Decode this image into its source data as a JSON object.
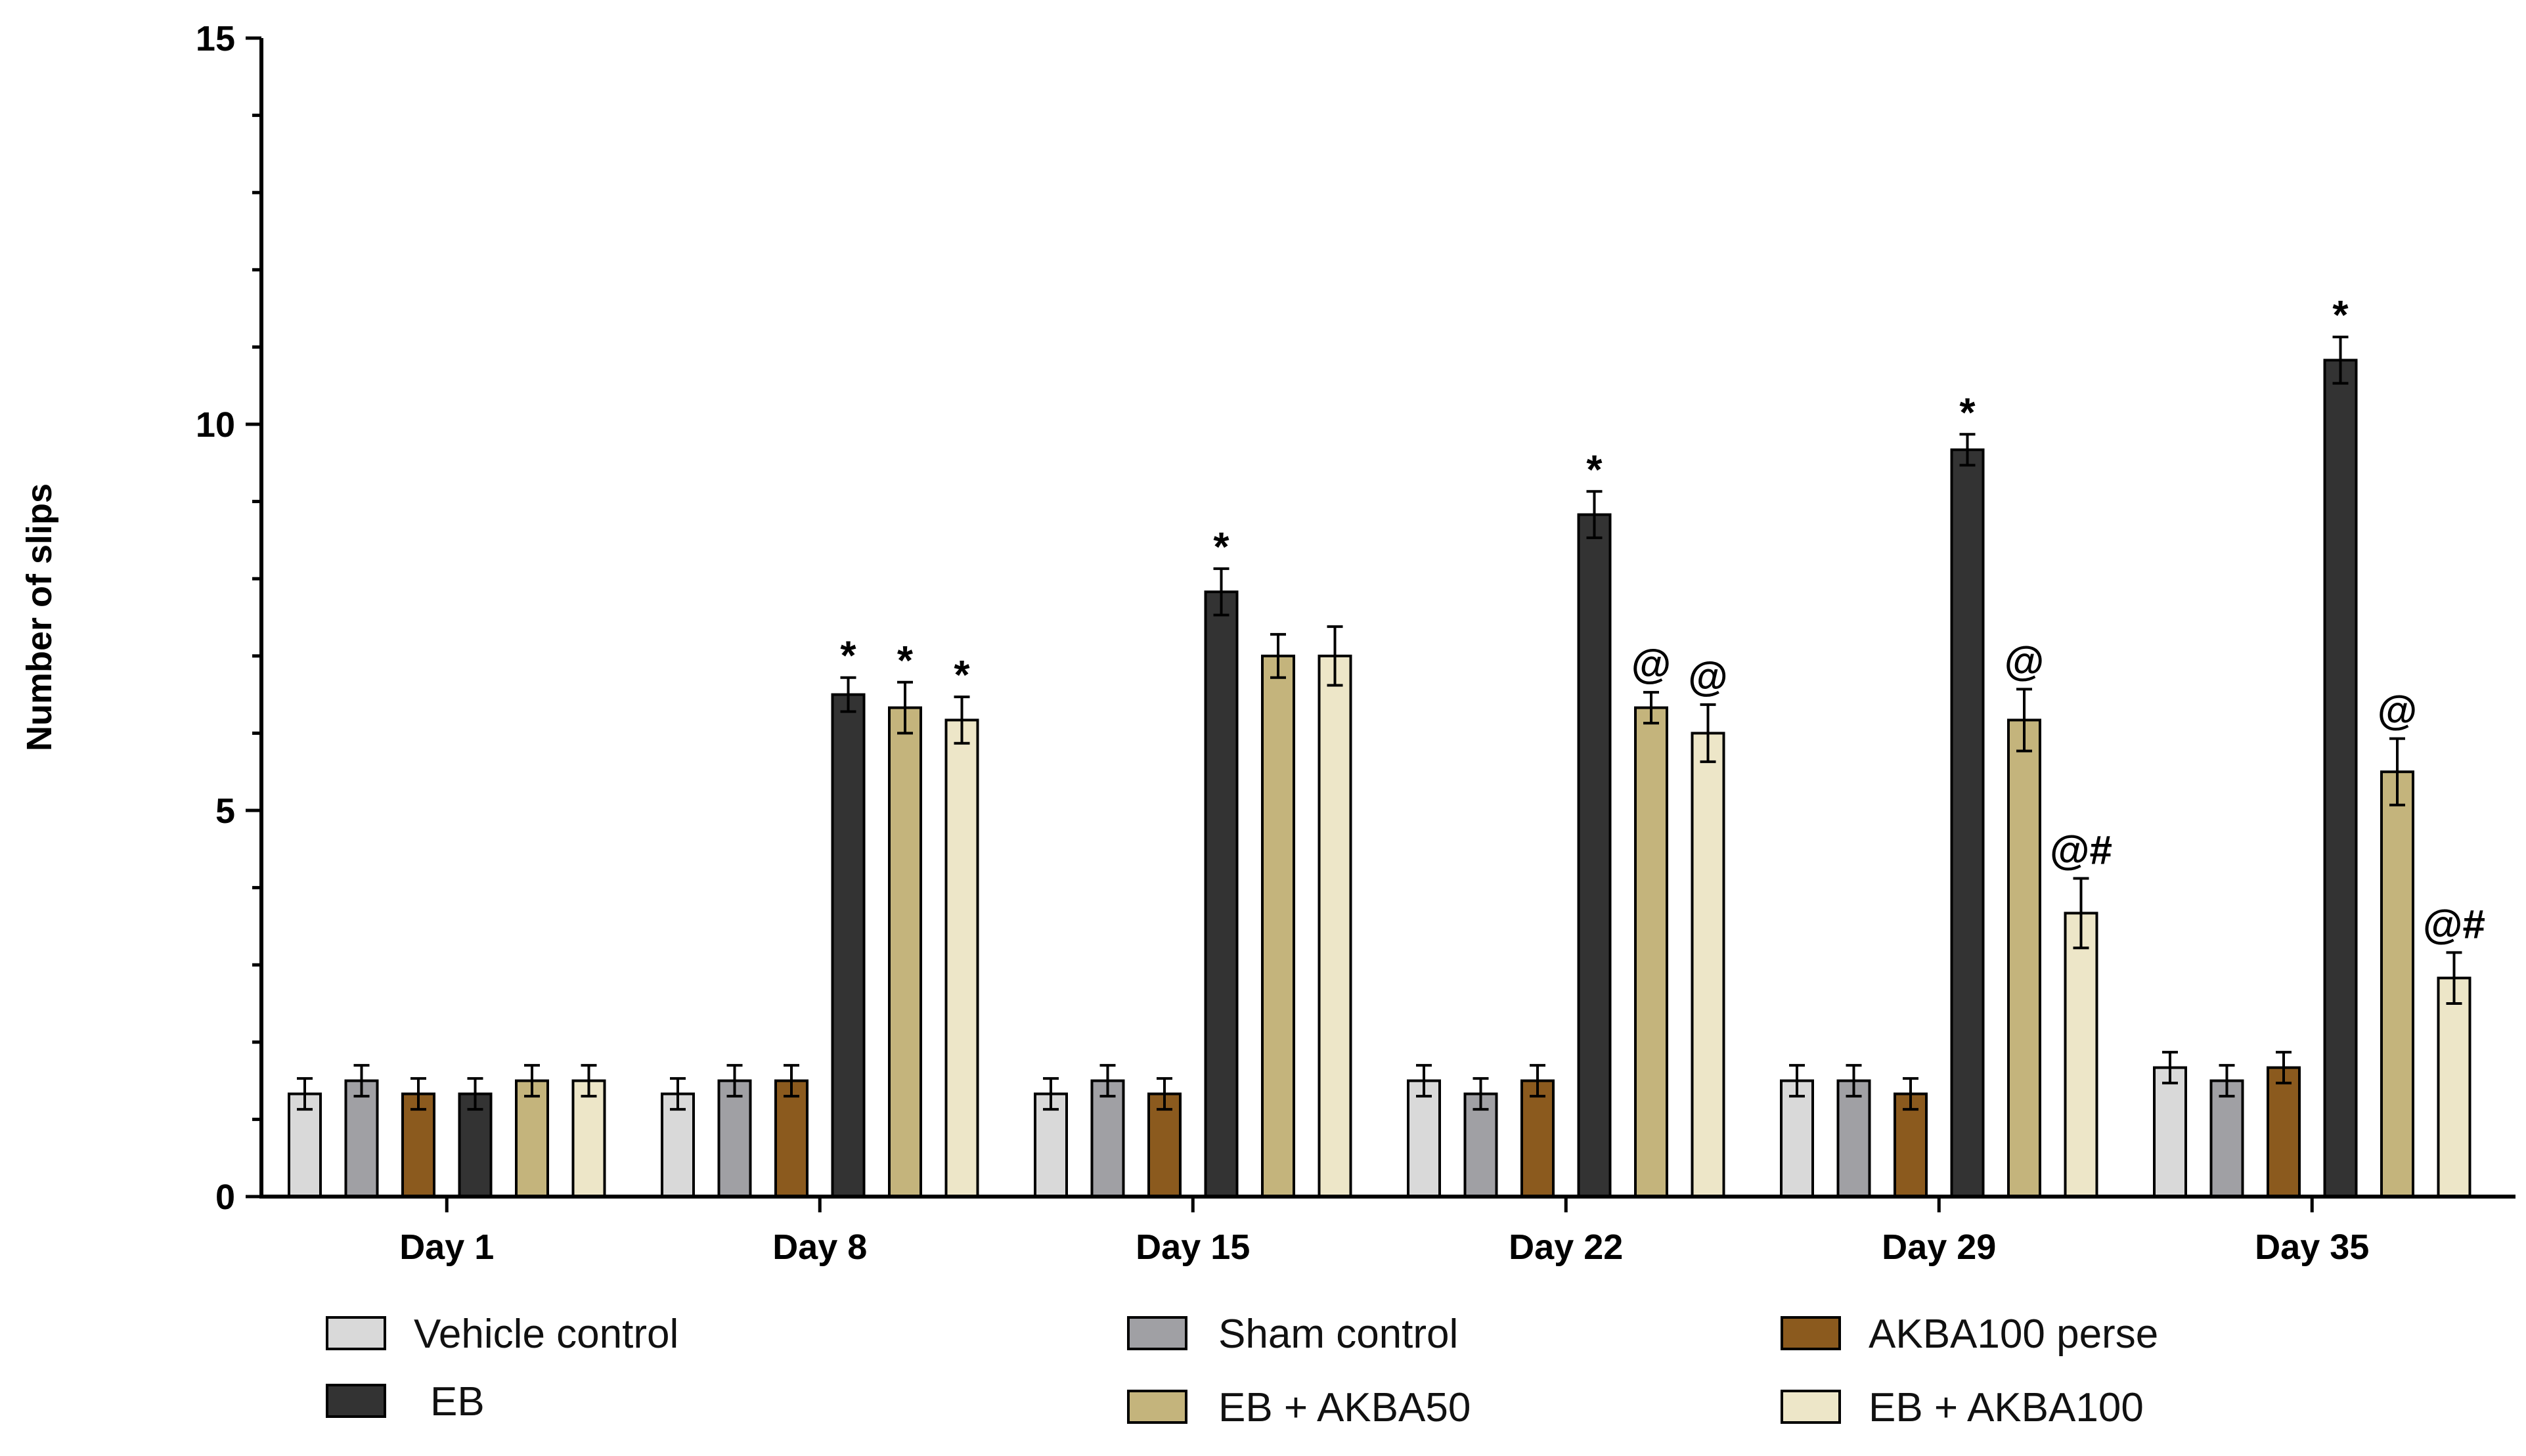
{
  "chart_data": {
    "type": "bar",
    "title": "",
    "xlabel": "",
    "ylabel": "Number of slips",
    "ylim": [
      0,
      15
    ],
    "yticks": [
      0,
      5,
      10,
      15
    ],
    "grid": false,
    "legend_position": "bottom",
    "categories": [
      "Day 1",
      "Day 8",
      "Day 15",
      "Day 22",
      "Day 29",
      "Day 35"
    ],
    "series": [
      {
        "name": "Vehicle control",
        "color": "#d9d9d9",
        "values": [
          1.33,
          1.33,
          1.33,
          1.5,
          1.5,
          1.67
        ],
        "errors": [
          0.2,
          0.2,
          0.2,
          0.2,
          0.2,
          0.2
        ],
        "annotations": [
          "",
          "",
          "",
          "",
          "",
          ""
        ]
      },
      {
        "name": "Sham control",
        "color": "#a0a0a4",
        "values": [
          1.5,
          1.5,
          1.5,
          1.33,
          1.5,
          1.5
        ],
        "errors": [
          0.2,
          0.2,
          0.2,
          0.2,
          0.2,
          0.2
        ],
        "annotations": [
          "",
          "",
          "",
          "",
          "",
          ""
        ]
      },
      {
        "name": "AKBA100 perse",
        "color": "#8b5a1e",
        "values": [
          1.33,
          1.5,
          1.33,
          1.5,
          1.33,
          1.67
        ],
        "errors": [
          0.2,
          0.2,
          0.2,
          0.2,
          0.2,
          0.2
        ],
        "annotations": [
          "",
          "",
          "",
          "",
          "",
          ""
        ]
      },
      {
        "name": "EB",
        "color": "#333333",
        "values": [
          1.33,
          6.5,
          7.83,
          8.83,
          9.67,
          10.83
        ],
        "errors": [
          0.2,
          0.22,
          0.3,
          0.3,
          0.2,
          0.3
        ],
        "annotations": [
          "",
          "*",
          "*",
          "*",
          "*",
          "*"
        ]
      },
      {
        "name": "EB + AKBA50",
        "color": "#c4b47c",
        "values": [
          1.5,
          6.33,
          7.0,
          6.33,
          6.17,
          5.5
        ],
        "errors": [
          0.2,
          0.33,
          0.28,
          0.2,
          0.4,
          0.43
        ],
        "annotations": [
          "",
          "*",
          "",
          "@",
          "@",
          "@"
        ]
      },
      {
        "name": "EB + AKBA100",
        "color": "#ede6c8",
        "values": [
          1.5,
          6.17,
          7.0,
          6.0,
          3.67,
          2.83
        ],
        "errors": [
          0.2,
          0.3,
          0.38,
          0.37,
          0.45,
          0.33
        ],
        "annotations": [
          "",
          "*",
          "",
          "@",
          "@#",
          "@#"
        ]
      }
    ],
    "legend_labels": [
      "Vehicle control",
      "EB",
      "Sham control",
      "EB + AKBA50",
      "AKBA100 perse",
      "EB + AKBA100"
    ]
  }
}
